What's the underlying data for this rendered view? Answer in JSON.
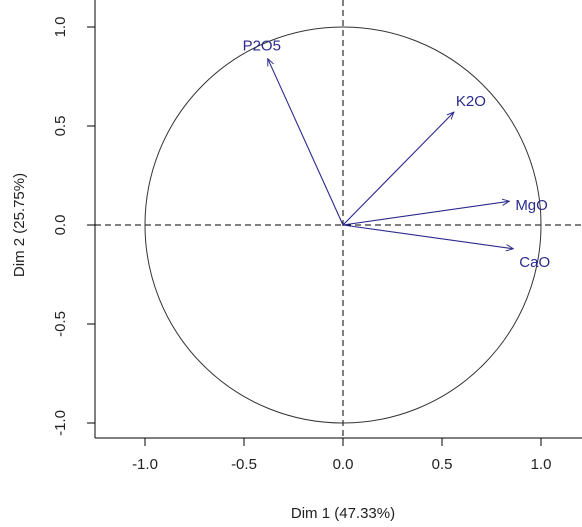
{
  "chart_data": {
    "type": "scatter",
    "subtype": "pca-correlation-circle",
    "title": "",
    "xlabel": "Dim 1 (47.33%)",
    "ylabel": "Dim 2 (25.75%)",
    "xlim": [
      -1.25,
      1.2
    ],
    "ylim": [
      -1.08,
      1.03
    ],
    "x_ticks": [
      -1.0,
      -0.5,
      0.0,
      0.5,
      1.0
    ],
    "x_tick_labels": [
      "-1.0",
      "-0.5",
      "0.0",
      "0.5",
      "1.0"
    ],
    "y_ticks": [
      -1.0,
      -0.5,
      0.0,
      0.5,
      1.0
    ],
    "y_tick_labels": [
      "-1.0",
      "-0.5",
      "0.0",
      "0.5",
      "1.0"
    ],
    "unit_circle": true,
    "reference_lines": [
      {
        "axis": "x",
        "value": 0,
        "style": "dashed"
      },
      {
        "axis": "y",
        "value": 0,
        "style": "dashed"
      }
    ],
    "grid": false,
    "legend": "none",
    "vectors": [
      {
        "name": "P2O5",
        "x": -0.38,
        "y": 0.84
      },
      {
        "name": "K2O",
        "x": 0.56,
        "y": 0.57
      },
      {
        "name": "MgO",
        "x": 0.84,
        "y": 0.12
      },
      {
        "name": "CaO",
        "x": 0.86,
        "y": -0.12
      }
    ],
    "colors": {
      "vector": "#2b2b8c",
      "circle": "#333333",
      "axes": "#000000"
    }
  }
}
